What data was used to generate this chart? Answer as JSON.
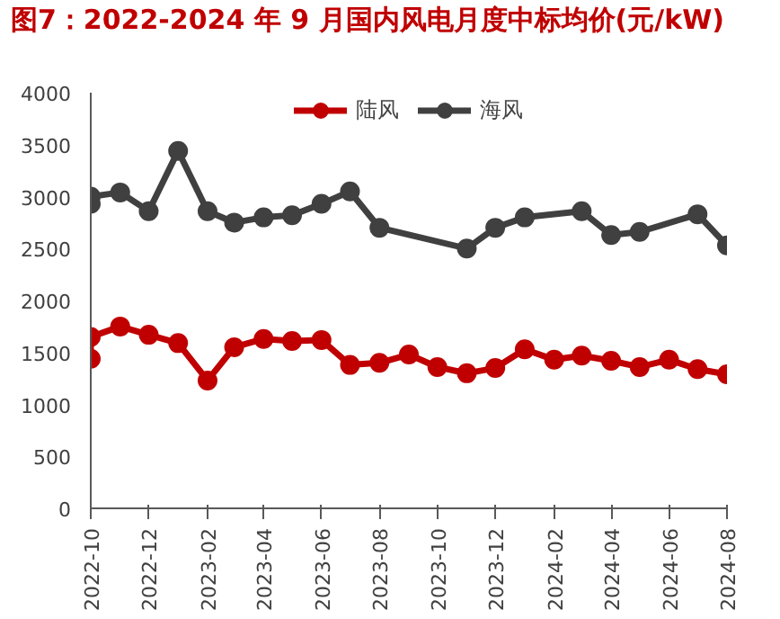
{
  "chart_data": {
    "type": "line",
    "title": "图7：2022-2024 年 9 月国内风电月度中标均价(元/kW)",
    "legend": "top",
    "grid": false,
    "marker": "circle",
    "line_style": "solid",
    "xlim": [
      "2022-10",
      "2024-08"
    ],
    "xticks": [
      {
        "value": "2022-10",
        "label": "2022-10"
      },
      {
        "value": "2022-12",
        "label": "2022-12"
      },
      {
        "value": "2023-02",
        "label": "2023-02"
      },
      {
        "value": "2023-04",
        "label": "2023-04"
      },
      {
        "value": "2023-06",
        "label": "2023-06"
      },
      {
        "value": "2023-08",
        "label": "2023-08"
      },
      {
        "value": "2023-10",
        "label": "2023-10"
      },
      {
        "value": "2023-12",
        "label": "2023-12"
      },
      {
        "value": "2024-02",
        "label": "2024-02"
      },
      {
        "value": "2024-04",
        "label": "2024-04"
      },
      {
        "value": "2024-06",
        "label": "2024-06"
      },
      {
        "value": "2024-08",
        "label": "2024-08"
      }
    ],
    "ylim": [
      0,
      4000
    ],
    "yticks": [
      0,
      500,
      1000,
      1500,
      2000,
      2500,
      3000,
      3500,
      4000
    ],
    "series": [
      {
        "name": "陆风",
        "color": "#c00000",
        "x": [
          "2022-10",
          "2022-10",
          "2022-11",
          "2022-12",
          "2023-01",
          "2023-02",
          "2023-03",
          "2023-04",
          "2023-05",
          "2023-06",
          "2023-07",
          "2023-08",
          "2023-09",
          "2023-10",
          "2023-11",
          "2023-12",
          "2024-01",
          "2024-02",
          "2024-03",
          "2024-04",
          "2024-05",
          "2024-06",
          "2024-07",
          "2024-08"
        ],
        "values": [
          1440,
          1650,
          1750,
          1670,
          1590,
          1230,
          1550,
          1630,
          1610,
          1620,
          1380,
          1400,
          1480,
          1360,
          1300,
          1350,
          1530,
          1430,
          1470,
          1420,
          1360,
          1430,
          1340,
          1290
        ]
      },
      {
        "name": "海风",
        "color": "#404040",
        "x": [
          "2022-10",
          "2022-10",
          "2022-11",
          "2022-12",
          "2023-01",
          "2023-02",
          "2023-03",
          "2023-04",
          "2023-05",
          "2023-06",
          "2023-07",
          "2023-08",
          "2023-11",
          "2023-12",
          "2024-01",
          "2024-03",
          "2024-04",
          "2024-05",
          "2024-07",
          "2024-08"
        ],
        "values": [
          2930,
          3000,
          3040,
          2860,
          3440,
          2860,
          2750,
          2800,
          2820,
          2930,
          3050,
          2700,
          2500,
          2700,
          2800,
          2860,
          2630,
          2660,
          2830,
          2530
        ]
      }
    ]
  }
}
